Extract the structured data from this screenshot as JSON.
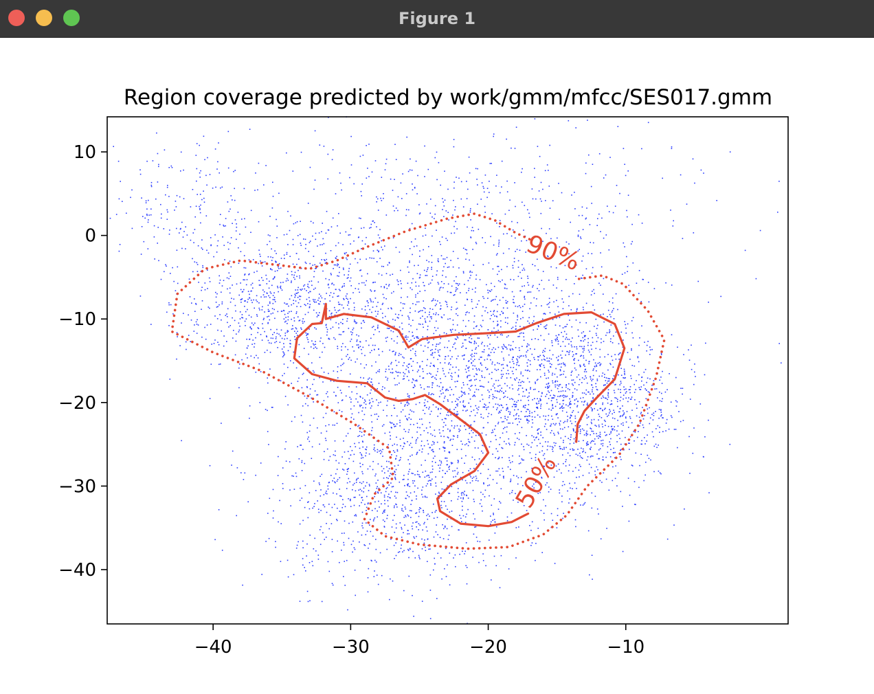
{
  "window": {
    "title": "Figure 1"
  },
  "colors": {
    "points": "#2a3cff",
    "contour": "#e24a33",
    "titlebar": "#383838"
  },
  "chart_data": {
    "type": "scatter",
    "title": "Region coverage predicted by work/gmm/mfcc/SES017.gmm",
    "xlabel": "",
    "ylabel": "",
    "xlim": [
      -47.7,
      1.8
    ],
    "ylim": [
      -46.5,
      14.2
    ],
    "xticks": [
      -40,
      -30,
      -20,
      -10
    ],
    "xtick_labels": [
      "−40",
      "−30",
      "−20",
      "−10"
    ],
    "yticks": [
      10,
      0,
      -10,
      -20,
      -30,
      -40
    ],
    "ytick_labels": [
      "10",
      "0",
      "−10",
      "−20",
      "−30",
      "−40"
    ],
    "grid": false,
    "series": [
      {
        "marker": "point",
        "color": "#2a3cff",
        "clusters": [
          {
            "cx": -22,
            "cy": -16,
            "sx": 6.5,
            "sy": 9,
            "n": 2600
          },
          {
            "cx": -35,
            "cy": -8,
            "sx": 3.5,
            "sy": 4,
            "n": 700
          },
          {
            "cx": -13,
            "cy": -20,
            "sx": 3.2,
            "sy": 5,
            "n": 900
          },
          {
            "cx": -27,
            "cy": -32,
            "sx": 4.5,
            "sy": 5,
            "n": 700
          },
          {
            "cx": -42,
            "cy": 3,
            "sx": 3,
            "sy": 4,
            "n": 180
          },
          {
            "cx": -22,
            "cy": 4,
            "sx": 9,
            "sy": 5,
            "n": 300
          }
        ]
      }
    ],
    "contours": [
      {
        "label": "90%",
        "style": "dotted",
        "label_at": [
          -15.5,
          -3
        ],
        "label_angle": 22,
        "points": [
          [
            -13.4,
            -5.2
          ],
          [
            -11.7,
            -4.8
          ],
          [
            -10.2,
            -5.8
          ],
          [
            -8.4,
            -9.0
          ],
          [
            -7.2,
            -12.5
          ],
          [
            -7.8,
            -17.0
          ],
          [
            -9.0,
            -22.5
          ],
          [
            -10.5,
            -26.3
          ],
          [
            -12.8,
            -30.0
          ],
          [
            -14.3,
            -33.5
          ],
          [
            -16.0,
            -35.8
          ],
          [
            -18.5,
            -37.3
          ],
          [
            -21.5,
            -37.5
          ],
          [
            -25.0,
            -37.0
          ],
          [
            -27.5,
            -36.0
          ],
          [
            -29.0,
            -34.0
          ],
          [
            -28.3,
            -31.0
          ],
          [
            -26.9,
            -29.0
          ],
          [
            -27.2,
            -25.5
          ],
          [
            -29.8,
            -22.5
          ],
          [
            -33.0,
            -19.3
          ],
          [
            -36.5,
            -16.2
          ],
          [
            -40.0,
            -14.0
          ],
          [
            -43.0,
            -11.5
          ],
          [
            -42.6,
            -7.0
          ],
          [
            -40.6,
            -4.0
          ],
          [
            -38.0,
            -3.0
          ],
          [
            -35.5,
            -3.5
          ],
          [
            -33.0,
            -4.0
          ],
          [
            -31.0,
            -3.0
          ],
          [
            -29.0,
            -1.5
          ],
          [
            -26.0,
            0.5
          ],
          [
            -23.0,
            2.0
          ],
          [
            -21.0,
            2.6
          ],
          [
            -19.5,
            1.8
          ],
          [
            -18.0,
            0.3
          ],
          [
            -16.8,
            -0.6
          ]
        ]
      },
      {
        "label": "50%",
        "style": "solid",
        "label_at": [
          -16,
          -30
        ],
        "label_angle": -60,
        "points": [
          [
            -17.1,
            -33.3
          ],
          [
            -18.3,
            -34.3
          ],
          [
            -20.0,
            -34.8
          ],
          [
            -22.0,
            -34.5
          ],
          [
            -23.5,
            -33.0
          ],
          [
            -23.7,
            -31.5
          ],
          [
            -22.7,
            -29.8
          ],
          [
            -21.0,
            -28.2
          ],
          [
            -20.0,
            -26.0
          ],
          [
            -20.6,
            -23.8
          ],
          [
            -21.8,
            -22.3
          ],
          [
            -23.5,
            -20.2
          ],
          [
            -24.6,
            -19.1
          ],
          [
            -25.5,
            -19.6
          ],
          [
            -26.5,
            -19.8
          ],
          [
            -27.5,
            -19.4
          ],
          [
            -28.8,
            -17.7
          ],
          [
            -31.0,
            -17.4
          ],
          [
            -32.8,
            -16.6
          ],
          [
            -34.1,
            -14.7
          ],
          [
            -33.9,
            -12.3
          ],
          [
            -32.8,
            -10.6
          ],
          [
            -32.1,
            -10.5
          ],
          [
            -31.8,
            -8.2
          ],
          [
            -31.8,
            -10.0
          ],
          [
            -30.5,
            -9.4
          ],
          [
            -28.5,
            -9.8
          ],
          [
            -26.5,
            -11.4
          ],
          [
            -25.8,
            -13.4
          ],
          [
            -24.8,
            -12.4
          ],
          [
            -22.5,
            -11.9
          ],
          [
            -20.0,
            -11.7
          ],
          [
            -18.0,
            -11.5
          ],
          [
            -16.5,
            -10.5
          ],
          [
            -14.5,
            -9.4
          ],
          [
            -12.5,
            -9.2
          ],
          [
            -10.8,
            -10.6
          ],
          [
            -10.1,
            -13.5
          ],
          [
            -10.8,
            -17.2
          ],
          [
            -12.1,
            -19.4
          ],
          [
            -13.0,
            -21.0
          ],
          [
            -13.5,
            -22.6
          ],
          [
            -13.6,
            -24.7
          ]
        ]
      }
    ]
  }
}
